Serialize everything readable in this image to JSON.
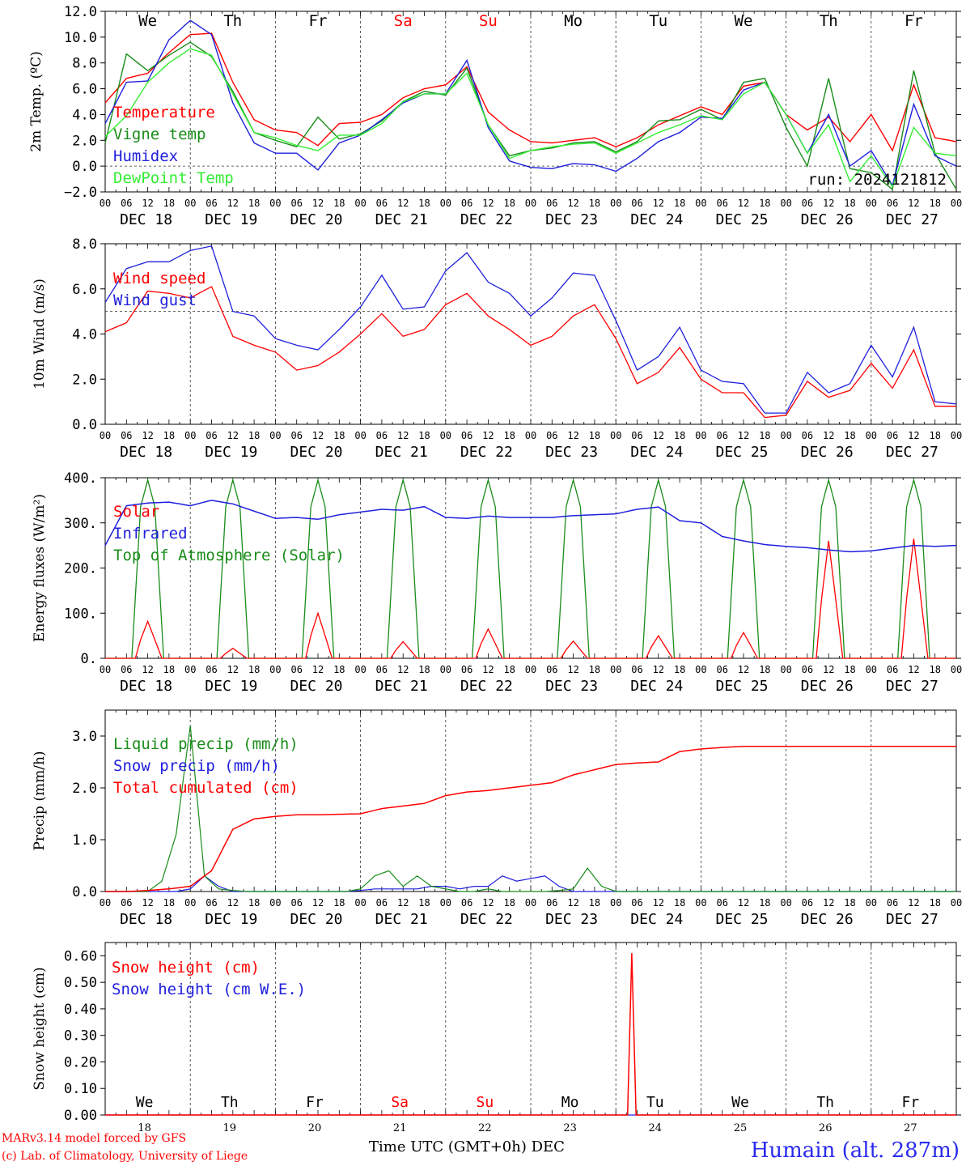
{
  "run_label": "run: 2024121812",
  "weekdays": [
    "We",
    "Th",
    "Fr",
    "Sa",
    "Su",
    "Mo",
    "Tu",
    "We",
    "Th",
    "Fr"
  ],
  "weekend_color": "#ff0000",
  "date_labels": [
    "DEC 18",
    "DEC 19",
    "DEC 20",
    "DEC 21",
    "DEC 22",
    "DEC 23",
    "DEC 24",
    "DEC 25",
    "DEC 26",
    "DEC 27"
  ],
  "day_numbers": [
    "18",
    "19",
    "20",
    "21",
    "22",
    "23",
    "24",
    "25",
    "26",
    "27"
  ],
  "hour_ticks": [
    "00",
    "06",
    "12",
    "18"
  ],
  "footer": {
    "line1": "MARv3.14 model forced by GFS",
    "line2": "(c) Lab. of Climatology, University of Liege",
    "x_title": "Time UTC (GMT+0h) DEC",
    "station": "Humain (alt. 287m)"
  },
  "chart_data": [
    {
      "type": "line",
      "ylabel": "2m Temp. (ºC)",
      "ylim": [
        -2,
        12
      ],
      "yticks": [
        "12.0",
        "10.0",
        "8.0",
        "6.0",
        "4.0",
        "2.0",
        "0.0",
        "−2.0"
      ],
      "ref_line": 0,
      "x_hours": [
        0,
        6,
        12,
        18,
        24,
        30,
        36,
        42,
        48,
        54,
        60,
        66,
        72,
        78,
        84,
        90,
        96,
        102,
        108,
        114,
        120,
        126,
        132,
        138,
        144,
        150,
        156,
        162,
        168,
        174,
        180,
        186,
        192,
        198,
        204,
        210,
        216,
        222,
        228,
        234,
        240
      ],
      "series": [
        {
          "name": "Temperature",
          "color": "#ff0000",
          "values": [
            4.9,
            6.8,
            7.2,
            8.8,
            10.2,
            10.3,
            6.5,
            3.6,
            2.8,
            2.6,
            1.6,
            3.3,
            3.4,
            4.0,
            5.3,
            6.0,
            6.3,
            7.7,
            4.2,
            2.8,
            1.9,
            1.8,
            2.0,
            2.2,
            1.5,
            2.2,
            3.2,
            3.9,
            4.6,
            4.0,
            6.2,
            6.5,
            4.0,
            2.8,
            3.8,
            1.9,
            4.0,
            1.2,
            6.3,
            2.2,
            1.9
          ]
        },
        {
          "name": "Vigne temp",
          "color": "#1a8c1a",
          "values": [
            1.8,
            8.7,
            7.4,
            8.6,
            9.6,
            8.5,
            5.8,
            2.6,
            2.0,
            1.5,
            3.8,
            2.1,
            2.5,
            3.5,
            5.0,
            5.8,
            5.5,
            7.6,
            3.2,
            0.8,
            1.2,
            1.4,
            1.8,
            1.9,
            1.1,
            1.9,
            3.5,
            3.6,
            4.4,
            3.6,
            6.5,
            6.8,
            3.0,
            0.0,
            6.8,
            -0.2,
            -0.5,
            -1.8,
            7.4,
            1.0,
            -1.8
          ]
        },
        {
          "name": "Humidex",
          "color": "#2020dd",
          "values": [
            3.3,
            6.5,
            6.6,
            9.8,
            11.3,
            10.2,
            4.9,
            1.8,
            1.0,
            1.0,
            -0.3,
            1.8,
            2.4,
            3.6,
            4.9,
            5.6,
            5.6,
            8.2,
            3.0,
            0.4,
            -0.1,
            -0.2,
            0.2,
            0.1,
            -0.4,
            0.6,
            1.9,
            2.6,
            3.8,
            3.7,
            5.9,
            6.5,
            4.0,
            1.0,
            4.0,
            0.0,
            1.2,
            -1.5,
            4.8,
            0.8,
            0.0
          ]
        },
        {
          "name": "DewPoint Temp",
          "color": "#33ee33",
          "values": [
            2.3,
            3.9,
            6.5,
            8.0,
            9.1,
            8.6,
            5.6,
            2.6,
            2.2,
            1.6,
            1.2,
            2.4,
            2.4,
            3.3,
            5.0,
            5.6,
            5.6,
            7.2,
            3.2,
            0.6,
            1.2,
            1.5,
            1.7,
            1.8,
            1.0,
            1.8,
            2.6,
            3.2,
            3.9,
            3.6,
            5.6,
            6.5,
            4.0,
            1.0,
            3.2,
            -1.2,
            0.8,
            -1.6,
            3.0,
            1.0,
            0.8
          ]
        }
      ]
    },
    {
      "type": "line",
      "ylabel": "10m Wind (m/s)",
      "ylim": [
        0,
        8
      ],
      "yticks": [
        "8.0",
        "6.0",
        "4.0",
        "2.0",
        "0.0"
      ],
      "ref_line": 5,
      "x_hours": [
        0,
        6,
        12,
        18,
        24,
        30,
        36,
        42,
        48,
        54,
        60,
        66,
        72,
        78,
        84,
        90,
        96,
        102,
        108,
        114,
        120,
        126,
        132,
        138,
        144,
        150,
        156,
        162,
        168,
        174,
        180,
        186,
        192,
        198,
        204,
        210,
        216,
        222,
        228,
        234,
        240
      ],
      "series": [
        {
          "name": "Wind speed",
          "color": "#ff0000",
          "values": [
            4.1,
            4.5,
            5.9,
            5.8,
            5.6,
            6.1,
            3.9,
            3.5,
            3.2,
            2.4,
            2.6,
            3.2,
            4.0,
            4.9,
            3.9,
            4.2,
            5.3,
            5.8,
            4.8,
            4.2,
            3.5,
            3.9,
            4.8,
            5.3,
            3.8,
            1.8,
            2.3,
            3.4,
            2.0,
            1.4,
            1.4,
            0.3,
            0.4,
            1.9,
            1.2,
            1.5,
            2.7,
            1.6,
            3.3,
            0.8,
            0.8
          ]
        },
        {
          "name": "Wind gust",
          "color": "#2020dd",
          "values": [
            5.4,
            6.9,
            7.2,
            7.2,
            7.7,
            7.9,
            5.0,
            4.8,
            3.8,
            3.5,
            3.3,
            4.2,
            5.2,
            6.6,
            5.1,
            5.2,
            6.8,
            7.6,
            6.3,
            5.8,
            4.8,
            5.6,
            6.7,
            6.6,
            4.6,
            2.4,
            3.0,
            4.3,
            2.4,
            1.9,
            1.8,
            0.5,
            0.5,
            2.3,
            1.4,
            1.8,
            3.5,
            2.1,
            4.3,
            1.0,
            0.9
          ]
        }
      ]
    },
    {
      "type": "line",
      "ylabel": "Energy fluxes (W/m²)",
      "ylim": [
        0,
        400
      ],
      "yticks": [
        "400.",
        "300.",
        "200.",
        "100.",
        "0."
      ],
      "solar_peaks": [
        82,
        22,
        100,
        37,
        65,
        38,
        50,
        57,
        260,
        265
      ],
      "series": [
        {
          "name": "Solar",
          "color": "#ff0000"
        },
        {
          "name": "Infrared",
          "color": "#2020dd",
          "values": [
            250,
            338,
            344,
            346,
            338,
            350,
            342,
            326,
            310,
            312,
            308,
            318,
            324,
            330,
            328,
            336,
            312,
            310,
            315,
            312,
            312,
            312,
            316,
            318,
            320,
            330,
            335,
            305,
            300,
            270,
            260,
            252,
            248,
            245,
            240,
            236,
            238,
            244,
            250,
            248,
            250
          ]
        },
        {
          "name": "Top of Atmosphere (Solar)",
          "color": "#1a8c1a",
          "peak": 395
        }
      ]
    },
    {
      "type": "line",
      "ylabel": "Precip (mm/h)",
      "ylim": [
        0,
        3.5
      ],
      "yticks": [
        "3.0",
        "2.0",
        "1.0",
        "0.0"
      ],
      "series": [
        {
          "name": "Liquid precip (mm/h)",
          "color": "#1a8c1a",
          "values": [
            0,
            0,
            0,
            0,
            0.2,
            1.1,
            3.2,
            0.3,
            0.05,
            0.02,
            0,
            0,
            0,
            0,
            0,
            0,
            0,
            0,
            0.05,
            0.3,
            0.4,
            0.1,
            0.3,
            0.1,
            0.05,
            0,
            0,
            0.05,
            0,
            0,
            0,
            0,
            0.02,
            0.05,
            0.45,
            0.1,
            0,
            0,
            0,
            0,
            0,
            0,
            0,
            0,
            0,
            0,
            0,
            0,
            0,
            0,
            0,
            0,
            0,
            0,
            0,
            0,
            0,
            0,
            0,
            0,
            0
          ]
        },
        {
          "name": "Snow precip (mm/h)",
          "color": "#2020dd",
          "values": [
            0,
            0,
            0,
            0,
            0,
            0,
            0.05,
            0.3,
            0.1,
            0,
            0,
            0,
            0,
            0,
            0,
            0,
            0,
            0,
            0.02,
            0.05,
            0.05,
            0.05,
            0.05,
            0.1,
            0.1,
            0.05,
            0.1,
            0.1,
            0.3,
            0.2,
            0.25,
            0.3,
            0.1,
            0,
            0,
            0,
            0,
            0,
            0,
            0,
            0,
            0,
            0,
            0,
            0,
            0,
            0,
            0,
            0,
            0,
            0,
            0,
            0,
            0,
            0,
            0,
            0,
            0,
            0,
            0,
            0
          ]
        },
        {
          "name": "Total cumulated (cm)",
          "color": "#ff0000",
          "values": [
            0,
            0,
            0.02,
            0.05,
            0.1,
            0.4,
            1.2,
            1.4,
            1.45,
            1.48,
            1.48,
            1.49,
            1.5,
            1.6,
            1.65,
            1.7,
            1.85,
            1.92,
            1.95,
            2.0,
            2.05,
            2.1,
            2.25,
            2.35,
            2.45,
            2.48,
            2.5,
            2.7,
            2.75,
            2.78,
            2.8,
            2.8,
            2.8,
            2.8,
            2.8,
            2.8,
            2.8,
            2.8,
            2.8,
            2.8,
            2.8
          ]
        }
      ]
    },
    {
      "type": "line",
      "ylabel": "Snow height (cm)",
      "ylim": [
        0,
        0.65
      ],
      "yticks": [
        "0.60",
        "0.50",
        "0.40",
        "0.30",
        "0.20",
        "0.10",
        "0.00"
      ],
      "series": [
        {
          "name": "Snow height (cm)",
          "color": "#ff0000",
          "spike_hour": 148.5,
          "spike_value": 0.61
        },
        {
          "name": "Snow height (cm W.E.)",
          "color": "#2020dd"
        }
      ]
    }
  ]
}
